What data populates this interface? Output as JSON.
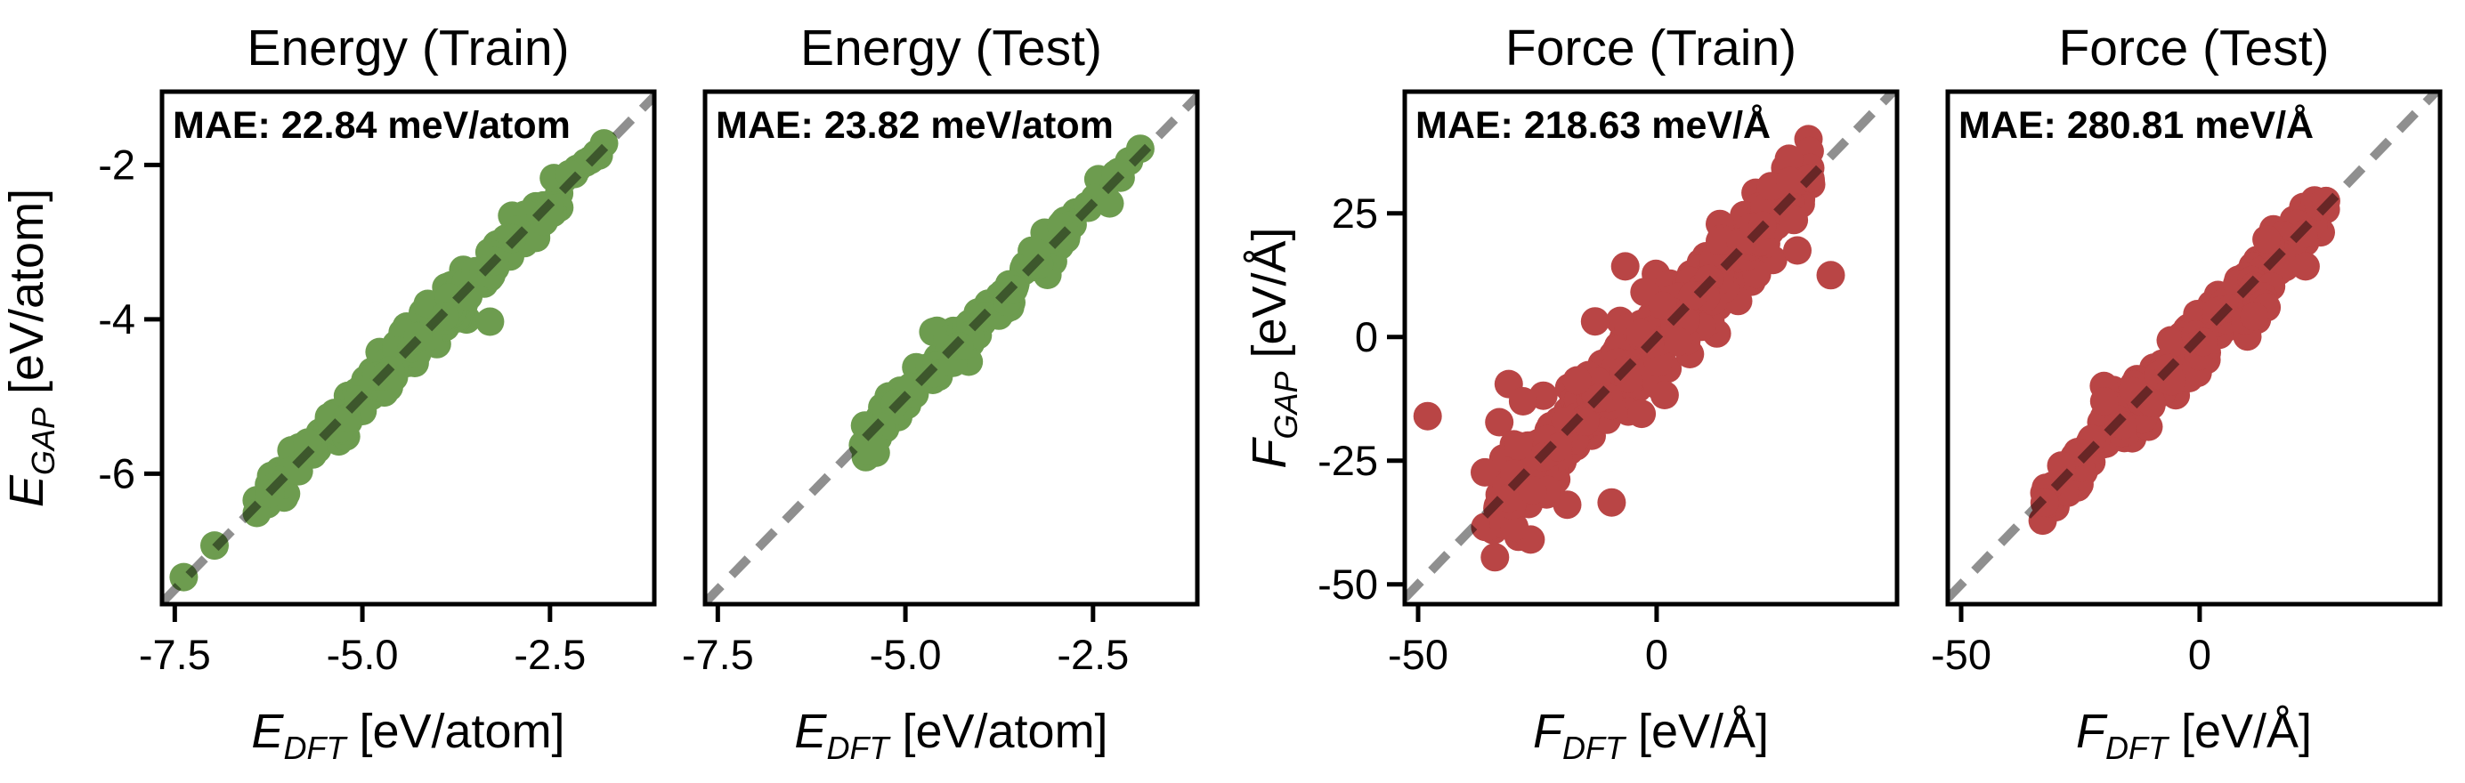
{
  "figure": {
    "background": "#ffffff",
    "spine_color": "#000000",
    "text_color": "#000000",
    "identity_line_color": "rgba(0,0,0,0.44)",
    "energy_marker_color": "#6d9c4f",
    "force_marker_color": "#b94545"
  },
  "chart_data": [
    {
      "id": "energy-train",
      "type": "scatter",
      "title": "Energy (Train)",
      "annotation": "MAE: 22.84 meV/atom",
      "xlabel": {
        "symbol": "E",
        "subscript": "DFT",
        "unit": " [eV/atom]"
      },
      "ylabel": {
        "symbol": "E",
        "subscript": "GAP",
        "unit": " [eV/atom]"
      },
      "xlim": [
        -7.67,
        -1.11
      ],
      "ylim": [
        -7.69,
        -1.05
      ],
      "xticks": [
        {
          "value": -7.5,
          "label": "-7.5"
        },
        {
          "value": -5.0,
          "label": "-5.0"
        },
        {
          "value": -2.5,
          "label": "-2.5"
        }
      ],
      "yticks": [
        {
          "value": -2,
          "label": "-2"
        },
        {
          "value": -4,
          "label": "-4"
        },
        {
          "value": -6,
          "label": "-6"
        }
      ],
      "marker_color": "#6d9c4f",
      "marker_radius_px": 16,
      "identity_line": true,
      "points_model": {
        "n": 280,
        "seed": 7,
        "x_mu": -4.25,
        "x_sd": 1.25,
        "x_min": -6.45,
        "x_max": -1.72,
        "sigma": 0.115,
        "tail_frac": 0.1,
        "tail_mult": 2.2,
        "clusters": [],
        "outliers": [
          [
            -7.38,
            -7.34
          ],
          [
            -6.97,
            -6.93
          ],
          [
            -3.3,
            -4.03
          ],
          [
            -1.78,
            -1.72
          ]
        ]
      }
    },
    {
      "id": "energy-test",
      "type": "scatter",
      "title": "Energy (Test)",
      "annotation": "MAE: 23.82 meV/atom",
      "xlabel": {
        "symbol": "E",
        "subscript": "DFT",
        "unit": " [eV/atom]"
      },
      "ylabel": null,
      "xlim": [
        -7.67,
        -1.11
      ],
      "ylim": [
        -7.69,
        -1.05
      ],
      "xticks": [
        {
          "value": -7.5,
          "label": "-7.5"
        },
        {
          "value": -5.0,
          "label": "-5.0"
        },
        {
          "value": -2.5,
          "label": "-2.5"
        }
      ],
      "yticks": [],
      "marker_color": "#6d9c4f",
      "marker_radius_px": 16,
      "identity_line": true,
      "points_model": {
        "n": 135,
        "seed": 13,
        "x_mu": -3.9,
        "x_sd": 1.0,
        "x_min": -5.6,
        "x_max": -2.1,
        "sigma": 0.1,
        "tail_frac": 0.08,
        "tail_mult": 1.8,
        "clusters": [
          {
            "x0": -5.6,
            "x1": -5.2,
            "dy": -0.18,
            "sigma": 0.08,
            "n": 12
          }
        ],
        "outliers": [
          [
            -2.02,
            -1.95
          ],
          [
            -1.87,
            -1.79
          ],
          [
            -2.2,
            -2.12
          ],
          [
            -5.5,
            -5.7
          ]
        ]
      }
    },
    {
      "id": "force-train",
      "type": "scatter",
      "title": "Force (Train)",
      "annotation": "MAE: 218.63 meV/Å",
      "xlabel": {
        "symbol": "F",
        "subscript": "DFT",
        "unit": " [eV/Å]"
      },
      "ylabel": {
        "symbol": "F",
        "subscript": "GAP",
        "unit": " [eV/Å]"
      },
      "xlim": [
        -52.8,
        50.4
      ],
      "ylim": [
        -54.0,
        49.6
      ],
      "xticks": [
        {
          "value": -50,
          "label": "-50"
        },
        {
          "value": 0,
          "label": "0"
        }
      ],
      "yticks": [
        {
          "value": 25,
          "label": "25"
        },
        {
          "value": 0,
          "label": "0"
        },
        {
          "value": -25,
          "label": "-25"
        },
        {
          "value": -50,
          "label": "-50"
        }
      ],
      "marker_color": "#b94545",
      "marker_radius_px": 16,
      "identity_line": true,
      "points_model": {
        "n": 640,
        "seed": 21,
        "x_mu": -2,
        "x_sd": 17,
        "x_min": -36,
        "x_max": 33,
        "sigma": 3.1,
        "tail_frac": 0.12,
        "tail_mult": 2.3,
        "clusters": [
          {
            "x0": -33,
            "x1": -18,
            "dy": 0,
            "sigma": 5,
            "n": 30
          }
        ],
        "outliers": [
          [
            -48,
            -16
          ],
          [
            -31,
            -9.5
          ],
          [
            29.5,
            17.5
          ],
          [
            36.5,
            12.5
          ],
          [
            -28,
            -13
          ],
          [
            -29,
            -22
          ],
          [
            -26,
            -31
          ],
          [
            24,
            30.5
          ],
          [
            28,
            31.5
          ]
        ]
      }
    },
    {
      "id": "force-test",
      "type": "scatter",
      "title": "Force (Test)",
      "annotation": "MAE: 280.81 meV/Å",
      "xlabel": {
        "symbol": "F",
        "subscript": "DFT",
        "unit": " [eV/Å]"
      },
      "ylabel": null,
      "xlim": [
        -52.8,
        50.4
      ],
      "ylim": [
        -54.0,
        49.6
      ],
      "xticks": [
        {
          "value": -50,
          "label": "-50"
        },
        {
          "value": 0,
          "label": "0"
        }
      ],
      "yticks": [],
      "marker_color": "#b94545",
      "marker_radius_px": 16,
      "identity_line": true,
      "points_model": {
        "n": 300,
        "seed": 33,
        "x_mu": -4,
        "x_sd": 14,
        "x_min": -33,
        "x_max": 27,
        "sigma": 2.5,
        "tail_frac": 0.1,
        "tail_mult": 2.0,
        "clusters": [
          {
            "x0": 9,
            "x1": 16,
            "dy": -7.5,
            "sigma": 1.6,
            "n": 10
          }
        ],
        "outliers": [
          [
            -32.5,
            -33.5
          ],
          [
            -29,
            -26
          ],
          [
            25,
            26.5
          ],
          [
            26.5,
            27.5
          ],
          [
            -20,
            -13
          ]
        ]
      }
    }
  ]
}
